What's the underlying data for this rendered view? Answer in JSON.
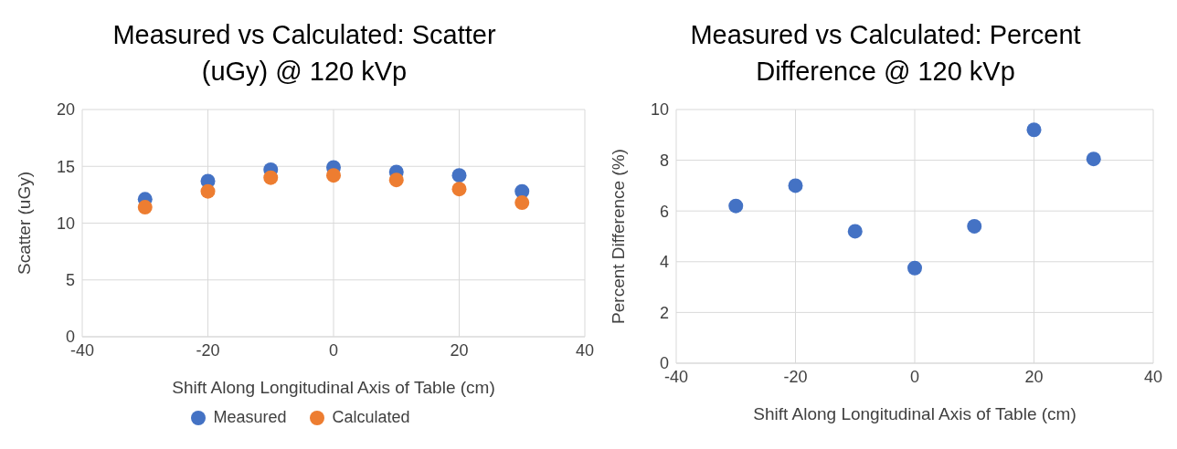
{
  "chart_data": [
    {
      "type": "scatter",
      "title": "Measured vs Calculated: Scatter (uGy) @ 120 kVp",
      "xlabel": "Shift Along Longitudinal Axis of Table (cm)",
      "ylabel": "Scatter (uGy)",
      "x": [
        -30,
        -20,
        -10,
        0,
        10,
        20,
        30
      ],
      "series": [
        {
          "name": "Measured",
          "color": "#4472c4",
          "values": [
            12.1,
            13.7,
            14.7,
            14.9,
            14.5,
            14.2,
            12.8
          ]
        },
        {
          "name": "Calculated",
          "color": "#ed7d31",
          "values": [
            11.4,
            12.8,
            14.0,
            14.2,
            13.8,
            13.0,
            11.8
          ]
        }
      ],
      "xlim": [
        -40,
        40
      ],
      "xticks": [
        -40,
        -20,
        0,
        20,
        40
      ],
      "ylim": [
        0,
        20
      ],
      "yticks": [
        0,
        5,
        10,
        15,
        20
      ],
      "grid": true,
      "legend": "bottom",
      "marker": "circle"
    },
    {
      "type": "scatter",
      "title": "Measured vs Calculated: Percent Difference @ 120 kVp",
      "xlabel": "Shift Along Longitudinal Axis of Table (cm)",
      "ylabel": "Percent Difference (%)",
      "x": [
        -30,
        -20,
        -10,
        0,
        10,
        20,
        30
      ],
      "series": [
        {
          "color": "#4472c4",
          "values": [
            6.2,
            7.0,
            5.2,
            3.75,
            5.4,
            9.2,
            8.05
          ]
        }
      ],
      "xlim": [
        -40,
        40
      ],
      "xticks": [
        -40,
        -20,
        0,
        20,
        40
      ],
      "ylim": [
        0,
        10
      ],
      "yticks": [
        0,
        2,
        4,
        6,
        8,
        10
      ],
      "grid": true,
      "marker": "circle"
    }
  ]
}
